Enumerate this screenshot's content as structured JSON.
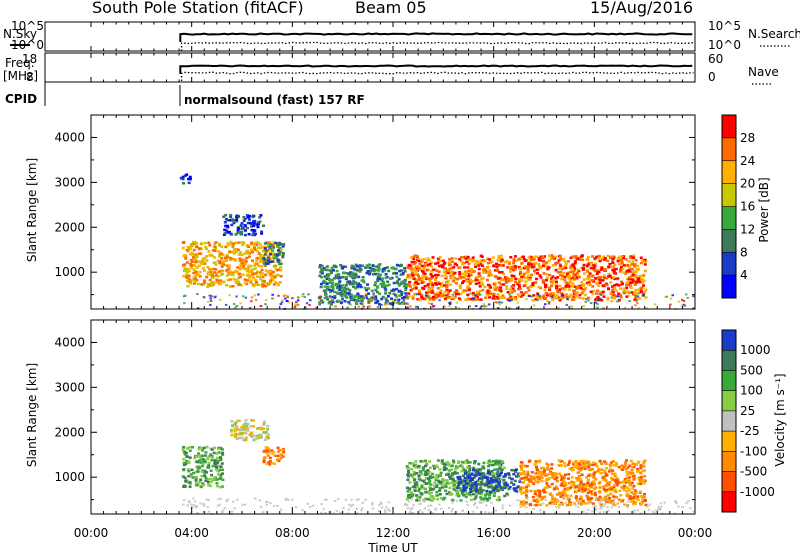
{
  "header": {
    "title": "South Pole Station (fitACF)",
    "beam": "Beam 05",
    "date": "15/Aug/2016"
  },
  "params": {
    "nsky_label": "N.Sky",
    "nsearch_label": "N.Search",
    "freq_label_line1": "Freq.",
    "freq_label_line2": "[MHz]",
    "nave_label": "Nave",
    "cpid_label": "CPID",
    "cpid_text": "normalsound (fast) 157 RF",
    "noise_ticks": [
      "10^5",
      "10^0"
    ],
    "freq_ticks": [
      "18",
      "8"
    ],
    "nave_ticks": [
      "60",
      "0"
    ]
  },
  "x_axis": {
    "label": "Time UT",
    "ticks": [
      "00:00",
      "04:00",
      "08:00",
      "12:00",
      "16:00",
      "20:00",
      "00:00"
    ]
  },
  "chart_data": [
    {
      "type": "heatmap",
      "quantity": "Power",
      "ylabel": "Slant Range [km]",
      "colorbar_label": "Power [dB]",
      "colorbar_ticks": [
        "28",
        "24",
        "20",
        "16",
        "12",
        "8",
        "4"
      ],
      "colorbar_colors": [
        "#ff0000",
        "#ff6a00",
        "#ffb000",
        "#c8c800",
        "#3aa83a",
        "#3c7a5a",
        "#1a3cc8",
        "#0000ff"
      ],
      "x_range_hours": [
        0,
        24
      ],
      "ylim": [
        180,
        4500
      ],
      "y_ticks": [
        1000,
        2000,
        3000,
        4000
      ],
      "echo_regions": [
        {
          "t_start": 3.6,
          "t_end": 7.5,
          "r_min": 700,
          "r_max": 1700,
          "dominant_db": 22
        },
        {
          "t_start": 5.2,
          "t_end": 6.8,
          "r_min": 1850,
          "r_max": 2300,
          "dominant_db": 6
        },
        {
          "t_start": 6.8,
          "t_end": 7.6,
          "r_min": 1200,
          "r_max": 1700,
          "dominant_db": 8
        },
        {
          "t_start": 3.5,
          "t_end": 3.9,
          "r_min": 3000,
          "r_max": 3200,
          "dominant_db": 6
        },
        {
          "t_start": 12.5,
          "t_end": 22.0,
          "r_min": 400,
          "r_max": 1400,
          "dominant_db": 24
        },
        {
          "t_start": 9.0,
          "t_end": 12.5,
          "r_min": 300,
          "r_max": 1200,
          "dominant_db": 10
        }
      ]
    },
    {
      "type": "heatmap",
      "quantity": "Velocity",
      "ylabel": "Slant Range [km]",
      "colorbar_label": "Velocity [m s⁻¹]",
      "colorbar_ticks": [
        "1000",
        "500",
        "100",
        "25",
        "-25",
        "-100",
        "-500",
        "-1000"
      ],
      "colorbar_colors": [
        "#1a3cc8",
        "#3c7a5a",
        "#3aa83a",
        "#88cc44",
        "#c0c0c0",
        "#ffb000",
        "#ff8c00",
        "#ff5000",
        "#ff0000"
      ],
      "x_range_hours": [
        0,
        24
      ],
      "ylim": [
        180,
        4500
      ],
      "y_ticks": [
        1000,
        2000,
        3000,
        4000
      ],
      "echo_regions": [
        {
          "t_start": 3.6,
          "t_end": 5.2,
          "r_min": 800,
          "r_max": 1700,
          "dominant_ms": 150
        },
        {
          "t_start": 5.5,
          "t_end": 7.0,
          "r_min": 1850,
          "r_max": 2300,
          "dominant_ms": 0
        },
        {
          "t_start": 6.8,
          "t_end": 7.6,
          "r_min": 1300,
          "r_max": 1700,
          "dominant_ms": -400
        },
        {
          "t_start": 12.5,
          "t_end": 16.5,
          "r_min": 500,
          "r_max": 1400,
          "dominant_ms": 300
        },
        {
          "t_start": 14.5,
          "t_end": 17.0,
          "r_min": 700,
          "r_max": 1200,
          "dominant_ms": 1000
        },
        {
          "t_start": 17.0,
          "t_end": 22.0,
          "r_min": 400,
          "r_max": 1400,
          "dominant_ms": -300
        }
      ]
    }
  ]
}
